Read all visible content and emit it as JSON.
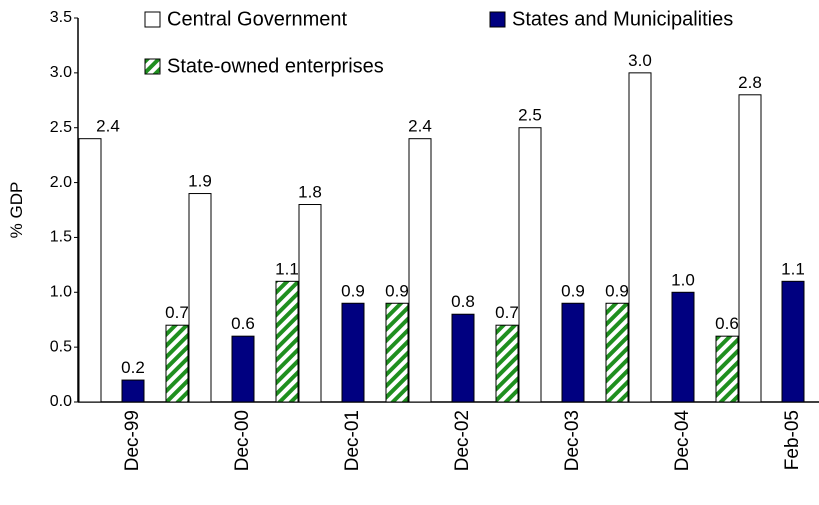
{
  "chart_data": {
    "type": "bar",
    "ylabel": "% GDP",
    "categories": [
      "Dec-99",
      "Dec-00",
      "Dec-01",
      "Dec-02",
      "Dec-03",
      "Dec-04",
      "Feb-05"
    ],
    "series": [
      {
        "name": "Central Government",
        "color": "#ffffff",
        "values": [
          2.4,
          1.9,
          1.8,
          2.4,
          2.5,
          3.0,
          2.8
        ],
        "value_labels": [
          "2.4",
          "1.9",
          "1.8",
          "2.4",
          "2.5",
          "3.0",
          "2.8"
        ]
      },
      {
        "name": "States and Municipalities",
        "color": "#000080",
        "values": [
          0.2,
          0.6,
          0.9,
          0.8,
          0.9,
          1.0,
          1.1
        ],
        "value_labels": [
          "0.2",
          "0.6",
          "0.9",
          "0.8",
          "0.9",
          "1.0",
          "1.1"
        ]
      },
      {
        "name": "State-owned enterprises",
        "color": "#1f8f1f",
        "hatch": true,
        "values": [
          0.7,
          1.1,
          0.9,
          0.7,
          0.9,
          0.6,
          null
        ],
        "value_labels": [
          "0.7",
          "1.1",
          "0.9",
          "0.7",
          "0.9",
          "0.6",
          null
        ]
      }
    ],
    "ylim": [
      0,
      3.5
    ],
    "yticks": [
      {
        "value": 0,
        "label": "0.0"
      },
      0.5,
      {
        "value": 1,
        "label": "1.0"
      },
      1.5,
      {
        "value": 2,
        "label": "2.0"
      },
      2.5,
      {
        "value": 3,
        "label": "3.0"
      },
      3.5
    ],
    "grid": false
  }
}
